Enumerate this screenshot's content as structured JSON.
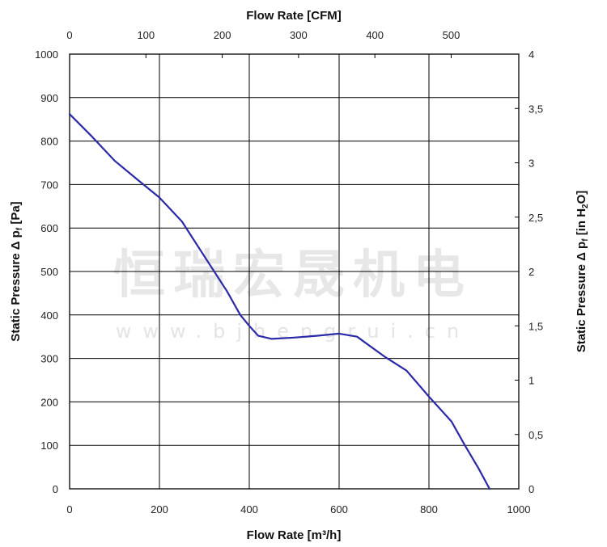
{
  "watermark": {
    "text_cn": "恒瑞宏晟机电",
    "url": "www.bjhengrui.cn"
  },
  "chart_data": {
    "type": "line",
    "xlabel_bottom": "Flow Rate [m³/h]",
    "xlabel_top": "Flow Rate [CFM]",
    "ylabel_left": "Static Pressure Δ p",
    "ylabel_left_sub": "f",
    "ylabel_left_unit": " [Pa]",
    "ylabel_right": "Static Pressure Δ p",
    "ylabel_right_sub": "f",
    "ylabel_right_unit_a": " [in H",
    "ylabel_right_unit_sub": "2",
    "ylabel_right_unit_b": "O]",
    "xlim": [
      0,
      1000
    ],
    "ylim": [
      0,
      1000
    ],
    "x_ticks": [
      "0",
      "200",
      "400",
      "600",
      "800",
      "1000"
    ],
    "y_ticks": [
      "0",
      "100",
      "200",
      "300",
      "400",
      "500",
      "600",
      "700",
      "800",
      "900",
      "1000"
    ],
    "x_top_ticks": [
      "0",
      "100",
      "200",
      "300",
      "400",
      "500"
    ],
    "y_right_ticks": [
      "0",
      "0,5",
      "1",
      "1,5",
      "2",
      "2,5",
      "3",
      "3,5",
      "4"
    ],
    "grid": true,
    "line_color": "#2a2aa8",
    "series": [
      {
        "x": [
          0,
          50,
          100,
          150,
          200,
          250,
          300,
          350,
          380,
          400,
          420,
          450,
          500,
          550,
          600,
          640,
          660,
          700,
          750,
          800,
          850,
          880,
          910,
          935
        ],
        "y": [
          862,
          810,
          755,
          712,
          670,
          615,
          535,
          455,
          400,
          375,
          352,
          345,
          348,
          352,
          357,
          350,
          335,
          305,
          272,
          212,
          155,
          100,
          48,
          0
        ]
      }
    ]
  }
}
